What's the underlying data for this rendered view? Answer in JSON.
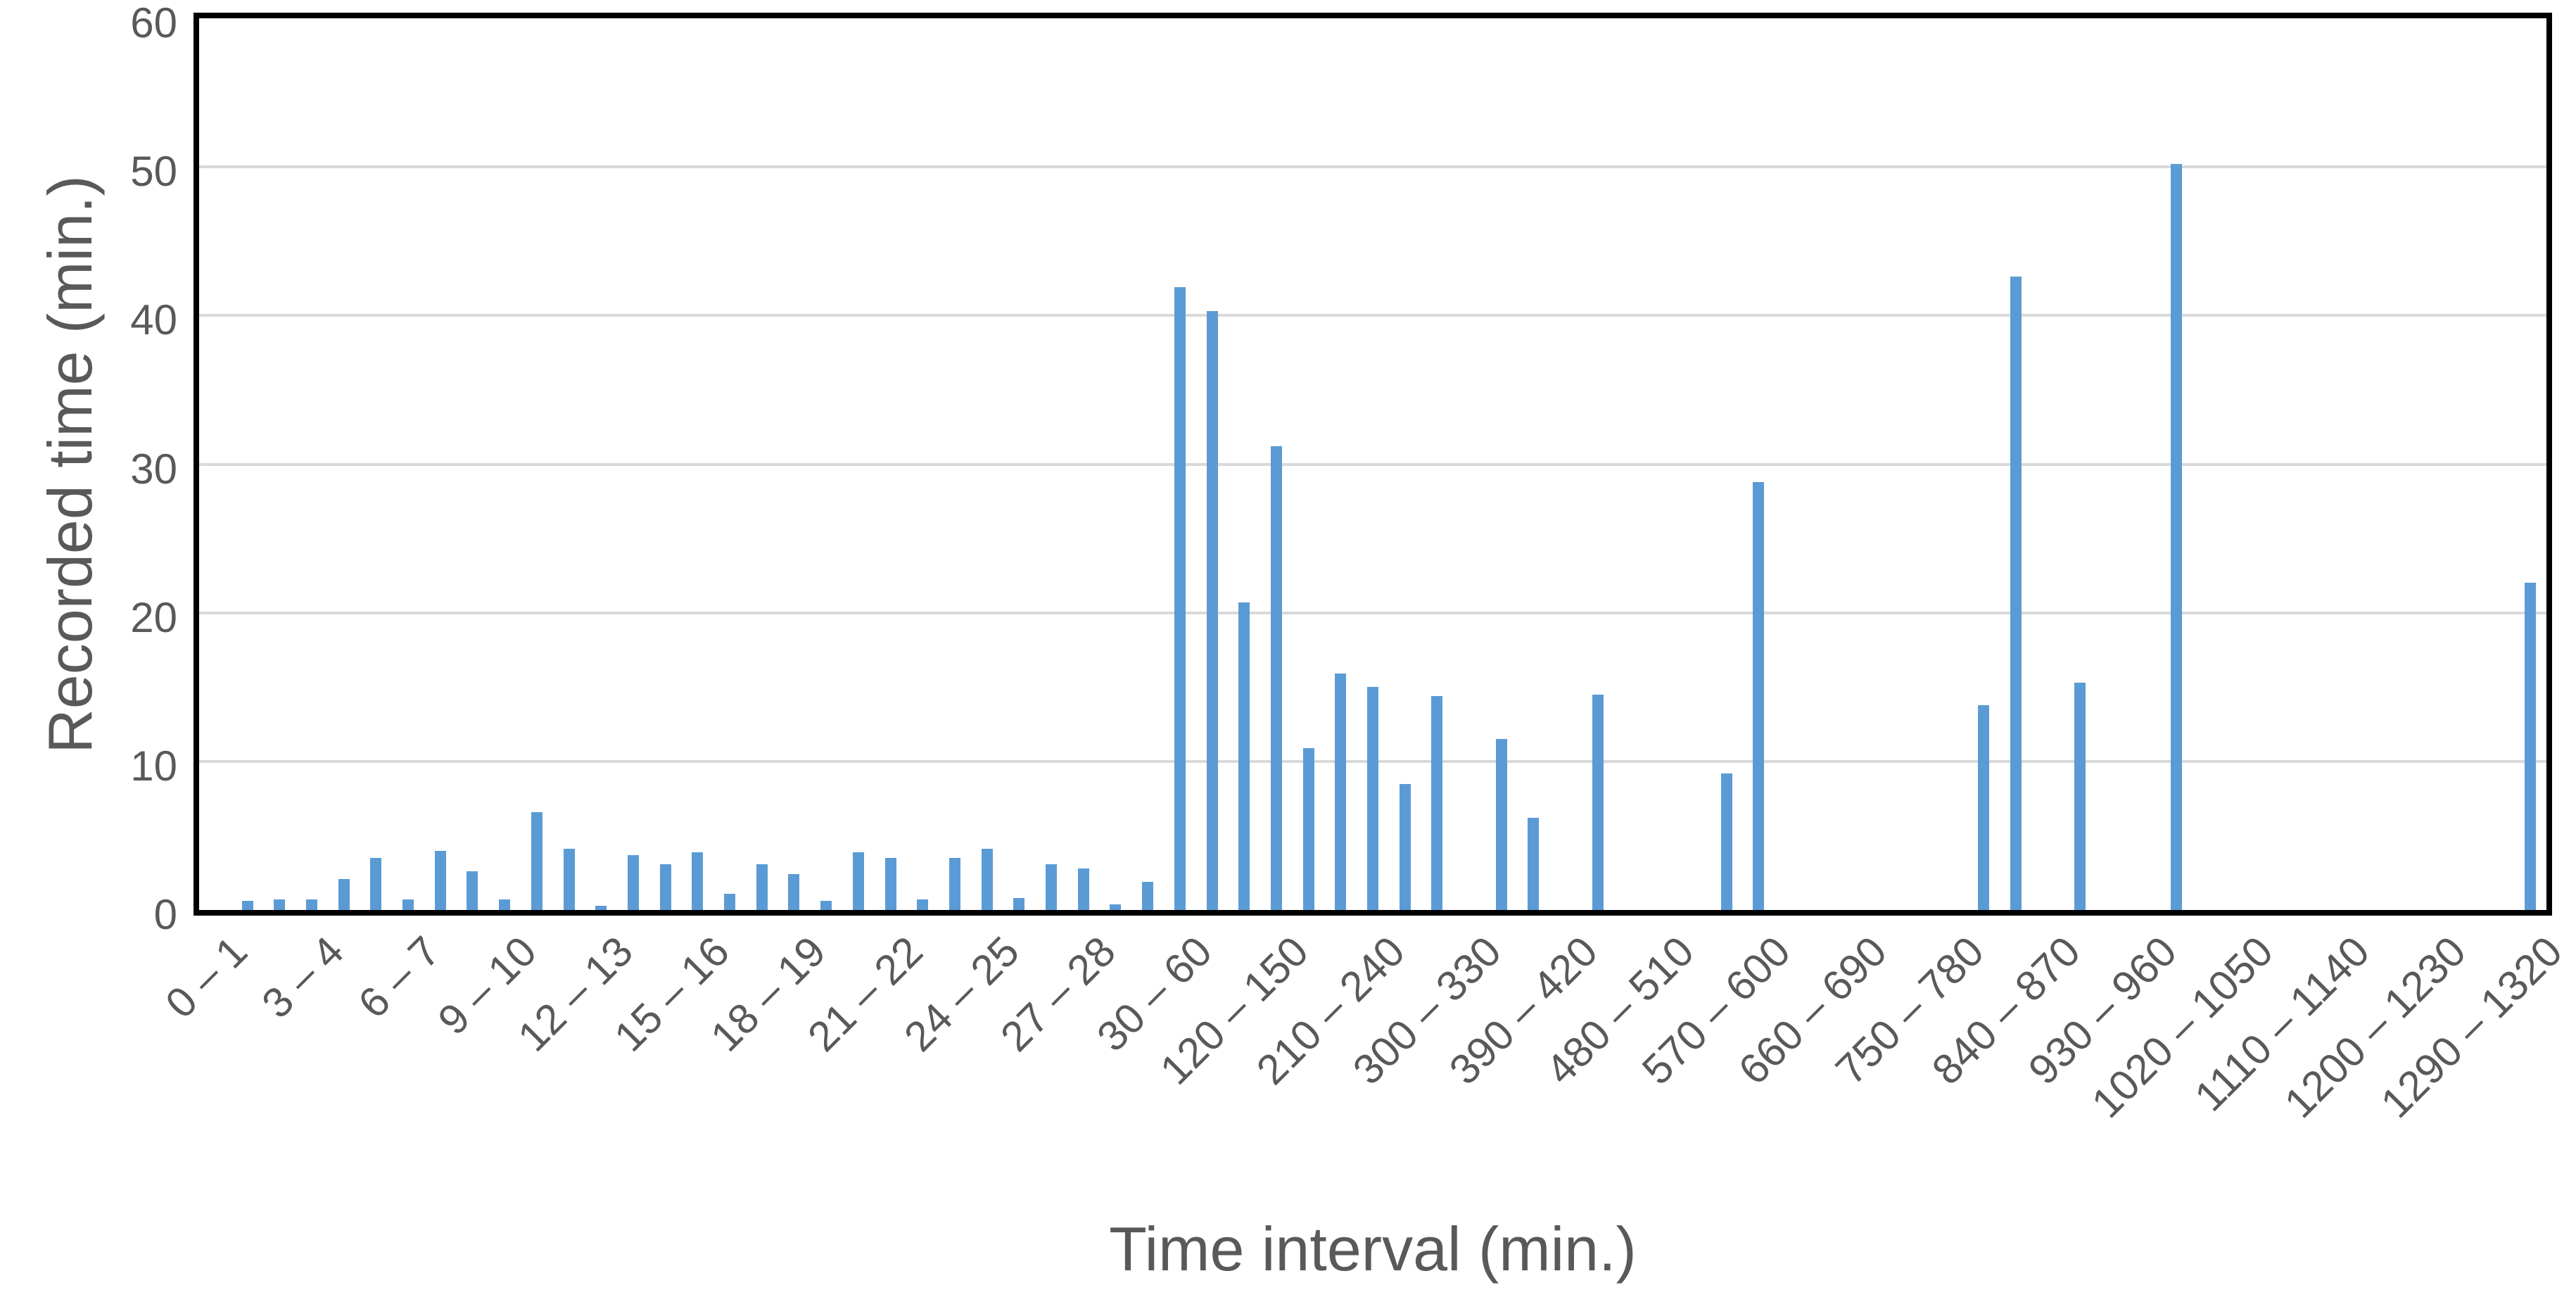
{
  "chart_data": {
    "type": "bar",
    "title": "",
    "xlabel": "Time interval (min.)",
    "ylabel": "Recorded time (min.)",
    "ylim": [
      0,
      60
    ],
    "yticks": [
      0,
      10,
      20,
      30,
      40,
      50,
      60
    ],
    "grid": "horizontal-major",
    "legend": "none",
    "x_label_interval": 3,
    "categories": [
      "0 – 1",
      "1 – 2",
      "2 – 3",
      "3 – 4",
      "4 – 5",
      "5 – 6",
      "6 – 7",
      "7 – 8",
      "8 – 9",
      "9 – 10",
      "10 – 11",
      "11 – 12",
      "12 – 13",
      "13 – 14",
      "14 – 15",
      "15 – 16",
      "16 – 17",
      "17 – 18",
      "18 – 19",
      "19 – 20",
      "20 – 21",
      "21 – 22",
      "22 – 23",
      "23 – 24",
      "24 – 25",
      "25 – 26",
      "26 – 27",
      "27 – 28",
      "28 – 29",
      "29 – 30",
      "30 – 60",
      "60 – 90",
      "90 – 120",
      "120 – 150",
      "150 – 180",
      "180 – 210",
      "210 – 240",
      "240 – 270",
      "270 – 300",
      "300 – 330",
      "330 – 360",
      "360 – 390",
      "390 – 420",
      "420 – 450",
      "450 – 480",
      "480 – 510",
      "510 – 540",
      "540 – 570",
      "570 – 600",
      "600 – 630",
      "630 – 660",
      "660 – 690",
      "690 – 720",
      "720 – 750",
      "750 – 780",
      "780 – 810",
      "810 – 840",
      "840 – 870",
      "870 – 900",
      "900 – 930",
      "930 – 960",
      "960 – 990",
      "990 – 1020",
      "1020 – 1050",
      "1050 – 1080",
      "1080 – 1110",
      "1110 – 1140",
      "1140 – 1170",
      "1170 – 1200",
      "1200 – 1230",
      "1230 – 1260",
      "1260 – 1290",
      "1290 – 1320"
    ],
    "values": [
      0,
      0.6,
      0.7,
      0.7,
      2.1,
      3.5,
      0.7,
      4.0,
      2.6,
      0.7,
      6.6,
      4.1,
      0.3,
      3.7,
      3.1,
      3.9,
      1.1,
      3.1,
      2.4,
      0.6,
      3.9,
      3.5,
      0.7,
      3.5,
      4.1,
      0.8,
      3.1,
      2.8,
      0.4,
      1.9,
      41.9,
      40.3,
      20.7,
      31.2,
      10.9,
      15.9,
      15.0,
      8.5,
      14.4,
      0,
      11.5,
      6.2,
      0,
      14.5,
      0,
      0,
      0,
      9.2,
      28.8,
      0,
      0,
      0,
      0,
      0,
      0,
      13.8,
      42.6,
      0,
      15.3,
      0,
      0,
      50.2,
      0,
      0,
      0,
      0,
      0,
      0,
      0,
      0,
      0,
      0,
      22.0
    ],
    "colors": {
      "bar": "#5B9BD5",
      "gridline": "#D9D9D9",
      "axis_text": "#595959",
      "plot_border": "#000000"
    }
  }
}
